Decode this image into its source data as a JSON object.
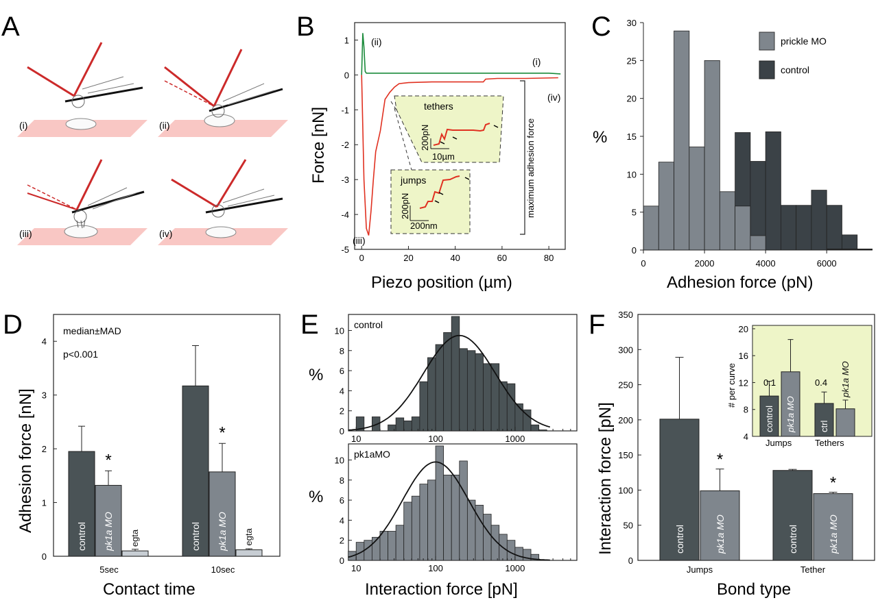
{
  "panels": {
    "A": {
      "letter": "A",
      "stages": [
        "(i)",
        "(ii)",
        "(iii)",
        "(iv)"
      ]
    },
    "B": {
      "letter": "B",
      "point_labels": [
        "(i)",
        "(ii)",
        "(iii)",
        "(iv)"
      ],
      "bracket_label": "maximum adhesion force",
      "inset_tethers": {
        "title": "tethers",
        "scale_y": "200pN",
        "scale_x": "10µm"
      },
      "inset_jumps": {
        "title": "jumps",
        "scale_y": "200pN",
        "scale_x": "200nm"
      },
      "colors": {
        "control": "#1a8a3a",
        "pk1a": "#e03020",
        "inset_bg": "#eef5c8"
      }
    },
    "C": {
      "letter": "C",
      "colors": {
        "prickle": "#7f868d",
        "control": "#3b4247"
      }
    },
    "D": {
      "letter": "D",
      "notes": [
        "median±MAD",
        "p<0.001"
      ],
      "bar_labels": [
        "control",
        "pk1a MO",
        "egta"
      ],
      "star": "*"
    },
    "E": {
      "letter": "E",
      "subtitles": [
        "control",
        "pk1aMO"
      ]
    },
    "F": {
      "letter": "F",
      "bar_labels": [
        "control",
        "pk1a MO"
      ],
      "star": "*",
      "inset": {
        "ylabel": "# per curve",
        "bar_labels": [
          "control",
          "pk1a MO",
          "ctrl",
          "pk1a MO"
        ],
        "annotations": [
          "0.1",
          "0.4"
        ],
        "groups": [
          "Jumps",
          "Tethers"
        ]
      }
    }
  },
  "chart_data": [
    {
      "panel": "B",
      "type": "line",
      "xlabel": "Piezo position (µm)",
      "ylabel": "Force [nN]",
      "xlim": [
        -3,
        87
      ],
      "ylim": [
        -5,
        1.5
      ],
      "xticks": [
        0,
        20,
        40,
        60,
        80
      ],
      "yticks": [
        1,
        0,
        -1,
        -2,
        -3,
        -4,
        -5
      ],
      "series": [
        {
          "color": "#1a8a3a",
          "x": [
            0,
            0.5,
            1,
            1.5,
            2,
            20,
            40,
            60,
            80,
            85
          ],
          "y": [
            0,
            1.2,
            0.8,
            0.1,
            0.05,
            0.05,
            0.05,
            0.05,
            0.05,
            0.03
          ]
        },
        {
          "color": "#e03020",
          "x": [
            0,
            1,
            2,
            3,
            4,
            5,
            6,
            8,
            10,
            12,
            14,
            16,
            20,
            30,
            40,
            52,
            53,
            58,
            70,
            84
          ],
          "y": [
            0,
            -3.0,
            -4.4,
            -4.6,
            -3.9,
            -3.0,
            -2.2,
            -1.6,
            -0.7,
            -0.5,
            -0.35,
            -0.25,
            -0.22,
            -0.2,
            -0.2,
            -0.2,
            -0.12,
            -0.1,
            -0.1,
            -0.08
          ]
        }
      ]
    },
    {
      "panel": "C",
      "type": "bar",
      "xlabel": "Adhesion force (pN)",
      "ylabel": "%",
      "xlim": [
        0,
        7500
      ],
      "ylim": [
        0,
        30
      ],
      "xticks": [
        0,
        2000,
        4000,
        6000
      ],
      "yticks": [
        0,
        5,
        10,
        15,
        20,
        25,
        30
      ],
      "bin_width": 500,
      "bin_edges_start": 0,
      "series": [
        {
          "name": "prickle MO",
          "values": [
            5.8,
            11.6,
            28.9,
            13.6,
            25.0,
            7.7,
            5.8,
            1.9,
            0,
            0,
            0,
            0,
            0,
            0,
            0
          ]
        },
        {
          "name": "control",
          "values": [
            0,
            0,
            0,
            0,
            0,
            3.9,
            15.5,
            11.7,
            15.6,
            5.9,
            5.9,
            7.9,
            5.9,
            2.0,
            0
          ]
        }
      ]
    },
    {
      "panel": "D",
      "type": "bar",
      "xlabel": "Contact time",
      "ylabel": "Adhesion force [nN]",
      "categories": [
        "5sec",
        "10sec"
      ],
      "ylim": [
        0,
        4.5
      ],
      "yticks": [
        0,
        1,
        2,
        3,
        4
      ],
      "series": [
        {
          "values": [
            1.95,
            3.17
          ],
          "errors": [
            0.47,
            0.75
          ]
        },
        {
          "values": [
            1.32,
            1.57
          ],
          "errors": [
            0.27,
            0.53
          ]
        },
        {
          "values": [
            0.1,
            0.12
          ],
          "errors": [
            0.03,
            0.02
          ]
        }
      ]
    },
    {
      "panel": "E",
      "type": "bar",
      "xlabel": "Interaction force [pN]",
      "ylabel": "%",
      "x_scale": "log",
      "xlim": [
        8,
        6000
      ],
      "ylim": [
        0,
        11.6
      ],
      "xticks": [
        10,
        100,
        1000
      ],
      "yticks": [
        0,
        2,
        4,
        6,
        8,
        10
      ],
      "series": [
        {
          "name": "control",
          "bin_log_start": 1.0,
          "bin_log_width": 0.1,
          "values": [
            1.4,
            0,
            1.4,
            0,
            0.6,
            1.3,
            1.0,
            1.4,
            4.9,
            7.3,
            8.6,
            9.8,
            11.4,
            8.2,
            8.0,
            7.7,
            6.7,
            6.7,
            4.9,
            4.7,
            2.7,
            2.1,
            0.6,
            0.1
          ],
          "fit": {
            "peak": 9.5,
            "center_log": 2.3,
            "sigma_log": 0.45
          }
        },
        {
          "name": "pk1aMO",
          "bin_log_start": 0.9,
          "bin_log_width": 0.1,
          "values": [
            0.9,
            1.8,
            2.0,
            2.3,
            2.9,
            2.9,
            3.5,
            5.8,
            6.4,
            7.6,
            8.0,
            11.4,
            8.5,
            8.5,
            9.9,
            6.0,
            5.5,
            4.6,
            3.5,
            2.6,
            2.0,
            1.3,
            1.1,
            0.6
          ],
          "fit": {
            "peak": 9.8,
            "center_log": 2.0,
            "sigma_log": 0.42
          }
        }
      ]
    },
    {
      "panel": "F",
      "type": "bar",
      "xlabel": "Bond type",
      "ylabel": "Interaction force [pN]",
      "categories": [
        "Jumps",
        "Tether"
      ],
      "ylim": [
        0,
        350
      ],
      "yticks": [
        0,
        50,
        100,
        150,
        200,
        250,
        300,
        350
      ],
      "series": [
        {
          "values": [
            201,
            128
          ],
          "errors": [
            88,
            1.5
          ]
        },
        {
          "values": [
            99,
            95
          ],
          "errors": [
            31,
            2
          ]
        }
      ]
    },
    {
      "panel": "F-inset",
      "type": "bar",
      "ylabel": "# per curve",
      "categories": [
        "Jumps",
        "Tethers"
      ],
      "ylim": [
        4,
        20.5
      ],
      "yticks": [
        4,
        8,
        12,
        16,
        20
      ],
      "series": [
        {
          "values": [
            10.0,
            8.9
          ],
          "errors": [
            2.2,
            1.7
          ]
        },
        {
          "values": [
            13.6,
            8.1
          ],
          "errors": [
            4.8,
            1.3
          ]
        }
      ]
    }
  ]
}
